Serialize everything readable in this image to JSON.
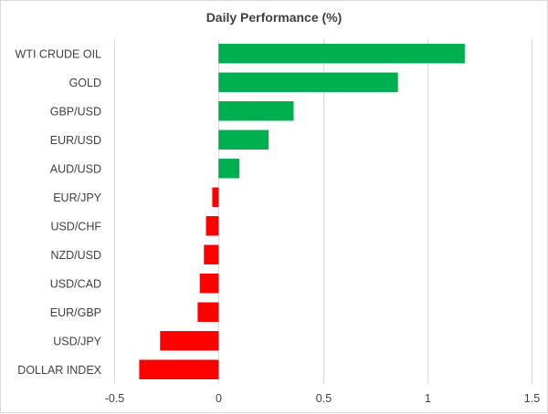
{
  "chart_data": {
    "type": "bar",
    "orientation": "horizontal",
    "title": "Daily Performance (%)",
    "xlabel": "",
    "ylabel": "",
    "categories": [
      "WTI CRUDE OIL",
      "GOLD",
      "GBP/USD",
      "EUR/USD",
      "AUD/USD",
      "EUR/JPY",
      "USD/CHF",
      "NZD/USD",
      "USD/CAD",
      "EUR/GBP",
      "USD/JPY",
      "DOLLAR INDEX"
    ],
    "values": [
      1.18,
      0.86,
      0.36,
      0.24,
      0.1,
      -0.03,
      -0.06,
      -0.07,
      -0.09,
      -0.1,
      -0.28,
      -0.38
    ],
    "xlim": [
      -0.5,
      1.5
    ],
    "xticks": [
      -0.5,
      0,
      0.5,
      1,
      1.5
    ],
    "xtick_labels": [
      "-0.5",
      "0",
      "0.5",
      "1",
      "1.5"
    ],
    "grid": "vertical",
    "legend": "none",
    "colors": {
      "positive": "#00b050",
      "negative": "#ff0000",
      "grid": "#d9d9d9",
      "text": "#404040"
    }
  }
}
